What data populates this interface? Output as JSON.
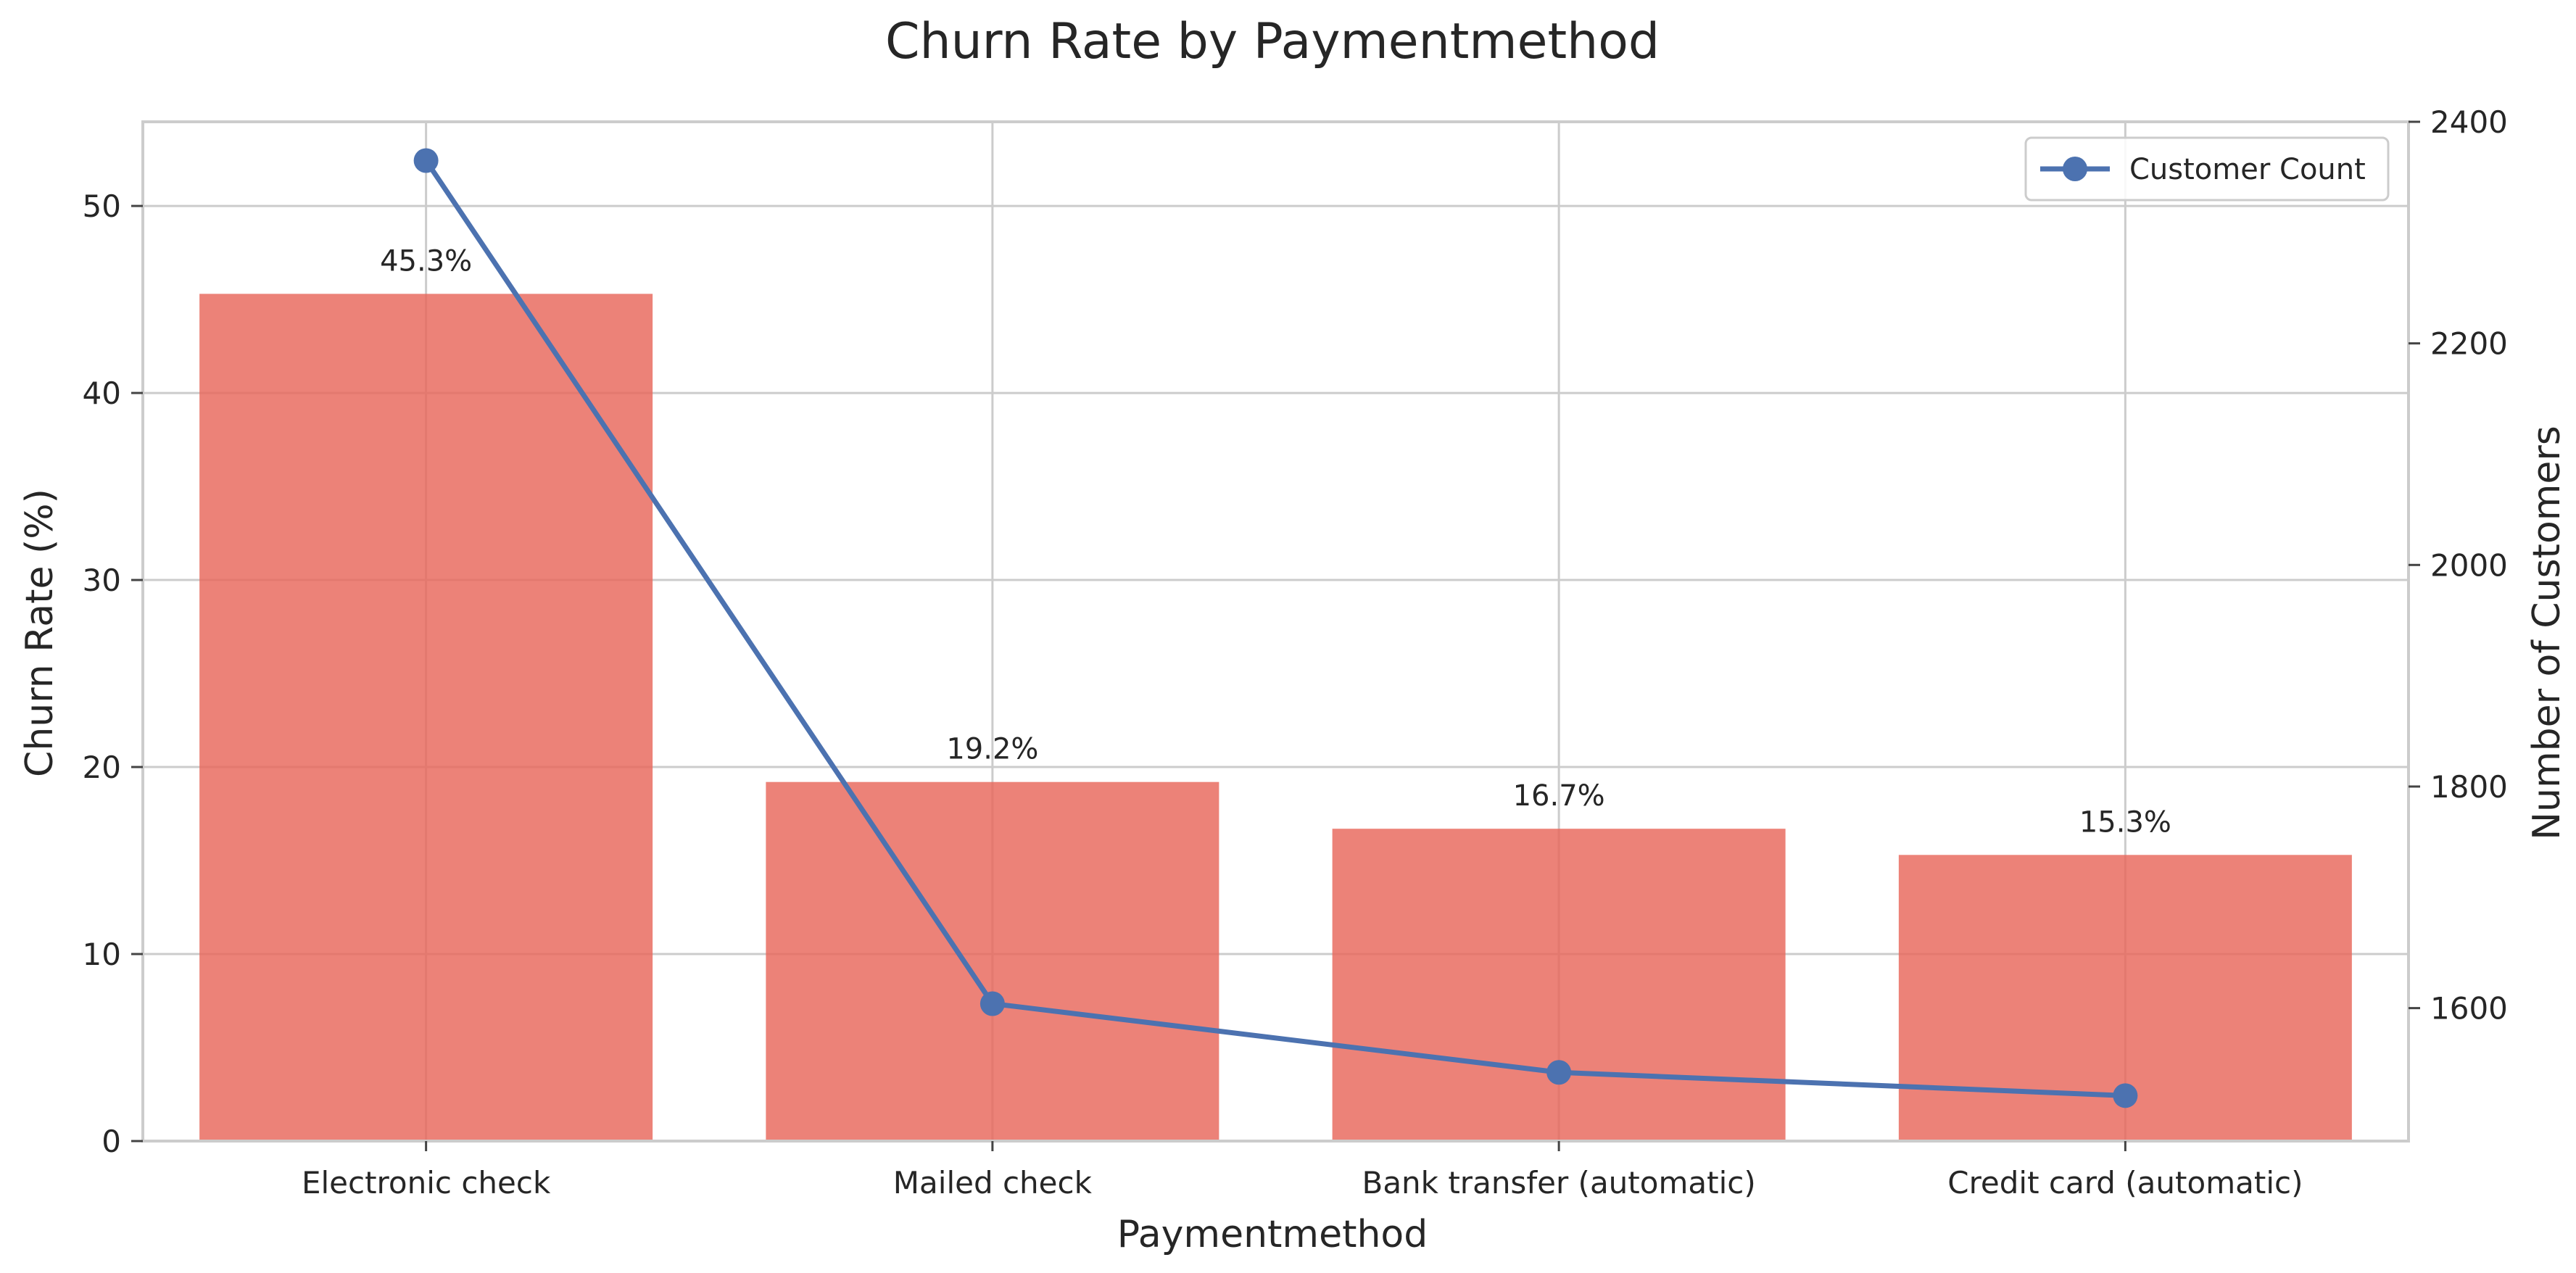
{
  "chart_data": {
    "type": "bar",
    "title": "Churn Rate by Paymentmethod",
    "xlabel": "Paymentmethod",
    "ylabel": "Churn Rate (%)",
    "y2label": "Number of Customers",
    "categories": [
      "Electronic check",
      "Mailed check",
      "Bank transfer (automatic)",
      "Credit card (automatic)"
    ],
    "values": [
      45.3,
      19.2,
      16.7,
      15.3
    ],
    "value_labels": [
      "45.3%",
      "19.2%",
      "16.7%",
      "15.3%"
    ],
    "ylim": [
      0,
      54.5
    ],
    "yticks": [
      0,
      10,
      20,
      30,
      40,
      50
    ],
    "bar_color": "#E8675A",
    "line_series": {
      "name": "Customer Count",
      "values": [
        2365,
        1604,
        1542,
        1521
      ],
      "color": "#4C72B0",
      "y2lim": [
        1480,
        2400
      ],
      "y2ticks": [
        1600,
        1800,
        2000,
        2200,
        2400
      ]
    },
    "grid": true,
    "legend_position": "top-right"
  }
}
